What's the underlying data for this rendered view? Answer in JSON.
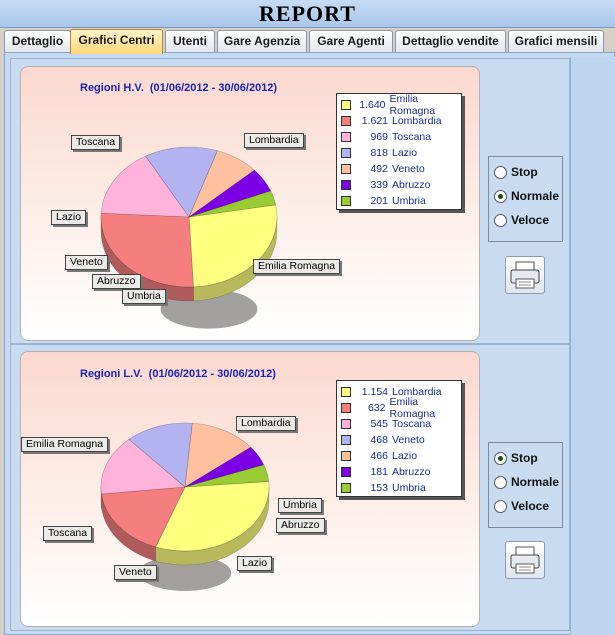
{
  "window": {
    "title": "REPORT"
  },
  "tabs": [
    {
      "label": "Dettaglio",
      "active": false
    },
    {
      "label": "Grafici Centri",
      "active": true
    },
    {
      "label": "Utenti",
      "active": false
    },
    {
      "label": "Gare Agenzia",
      "active": false
    },
    {
      "label": "Gare Agenti",
      "active": false
    },
    {
      "label": "Dettaglio vendite",
      "active": false
    },
    {
      "label": "Grafici mensili",
      "active": false
    }
  ],
  "panels": [
    {
      "title": "Regioni H.V.  (01/06/2012 - 30/06/2012)",
      "speed": {
        "options": [
          "Stop",
          "Normale",
          "Veloce"
        ],
        "selected": "Normale"
      },
      "chart_data": {
        "type": "pie",
        "title": "Regioni H.V.  (01/06/2012 - 30/06/2012)",
        "slices": [
          {
            "label": "Emilia Romagna",
            "value": 1640,
            "value_text": "1.640",
            "color": "#ffff80"
          },
          {
            "label": "Lombardia",
            "value": 1621,
            "value_text": "1.621",
            "color": "#f57f7f"
          },
          {
            "label": "Toscana",
            "value": 969,
            "value_text": "969",
            "color": "#ffb3da"
          },
          {
            "label": "Lazio",
            "value": 818,
            "value_text": "818",
            "color": "#b3b3f2"
          },
          {
            "label": "Veneto",
            "value": 492,
            "value_text": "492",
            "color": "#ffc0a0"
          },
          {
            "label": "Abruzzo",
            "value": 339,
            "value_text": "339",
            "color": "#7b00e6"
          },
          {
            "label": "Umbria",
            "value": 201,
            "value_text": "201",
            "color": "#99cc33"
          }
        ],
        "legend": "top-right"
      }
    },
    {
      "title": "Regioni L.V.  (01/06/2012 - 30/06/2012)",
      "speed": {
        "options": [
          "Stop",
          "Normale",
          "Veloce"
        ],
        "selected": "Stop"
      },
      "chart_data": {
        "type": "pie",
        "title": "Regioni L.V.  (01/06/2012 - 30/06/2012)",
        "slices": [
          {
            "label": "Lombardia",
            "value": 1154,
            "value_text": "1.154",
            "color": "#ffff80"
          },
          {
            "label": "Emilia Romagna",
            "value": 632,
            "value_text": "632",
            "color": "#f57f7f"
          },
          {
            "label": "Toscana",
            "value": 545,
            "value_text": "545",
            "color": "#ffb3da"
          },
          {
            "label": "Veneto",
            "value": 468,
            "value_text": "468",
            "color": "#b3b3f2"
          },
          {
            "label": "Lazio",
            "value": 466,
            "value_text": "466",
            "color": "#ffc0a0"
          },
          {
            "label": "Abruzzo",
            "value": 181,
            "value_text": "181",
            "color": "#7b00e6"
          },
          {
            "label": "Umbria",
            "value": 153,
            "value_text": "153",
            "color": "#99cc33"
          }
        ],
        "legend": "top-right"
      }
    }
  ],
  "icons": {
    "print": "printer-icon"
  }
}
